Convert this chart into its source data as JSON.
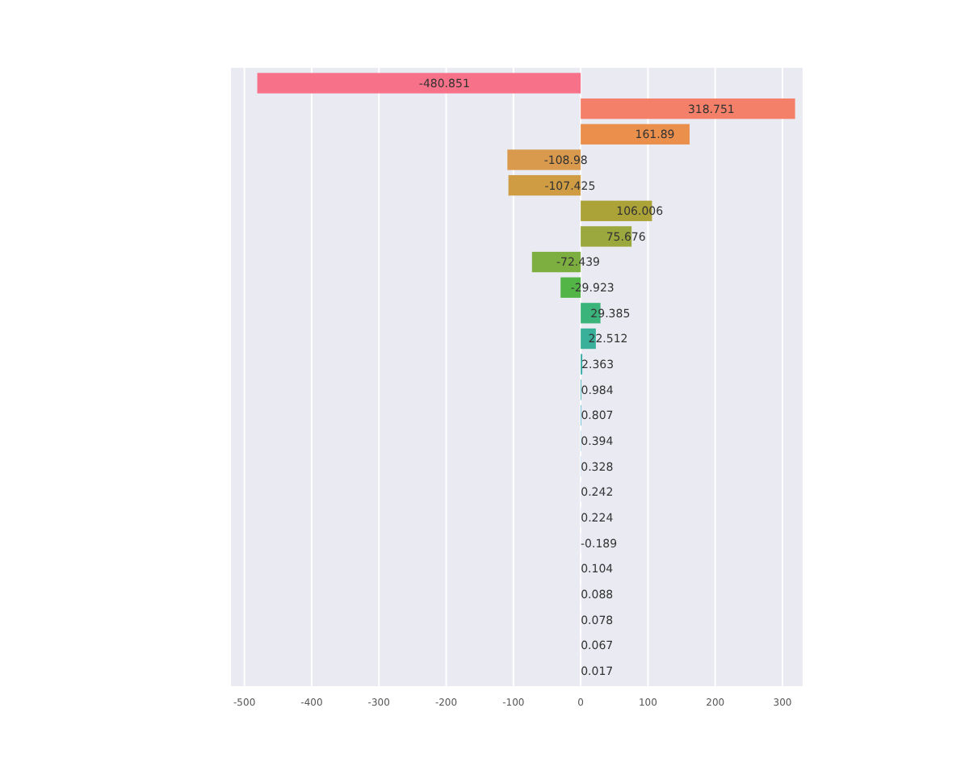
{
  "chart_data": {
    "type": "bar",
    "orientation": "horizontal",
    "categories": [
      null,
      null,
      null,
      null,
      null,
      null,
      null,
      null,
      null,
      null,
      null,
      null,
      null,
      null,
      null,
      null,
      null,
      null,
      null,
      null,
      null,
      null,
      null,
      null
    ],
    "values": [
      -480.851,
      318.751,
      161.89,
      -108.98,
      -107.425,
      106.006,
      75.676,
      -72.439,
      -29.923,
      29.385,
      22.512,
      2.363,
      0.984,
      0.807,
      0.394,
      0.328,
      0.242,
      0.224,
      -0.189,
      0.104,
      0.088,
      0.078,
      0.067,
      0.017
    ],
    "colors": [
      "#f77189",
      "#f4806a",
      "#ea8f4c",
      "#d99a4e",
      "#cf9c44",
      "#aba238",
      "#9aa83d",
      "#7cae40",
      "#52b546",
      "#3bb47c",
      "#38b09a",
      "#37adaa",
      "#38abb8",
      "#39a8c6",
      "#3ea4d4",
      "#5c9ce6",
      "#7d95f0",
      "#9b8ef4",
      "#b086f4",
      "#c47ef2",
      "#d875ec",
      "#e86ce3",
      "#f565d4",
      "#f66ab0"
    ],
    "xlim": [
      -520,
      330
    ],
    "xticks": [
      -500,
      -400,
      -300,
      -200,
      -100,
      0,
      100,
      200,
      300
    ],
    "grid": "x",
    "data_labels": true
  }
}
